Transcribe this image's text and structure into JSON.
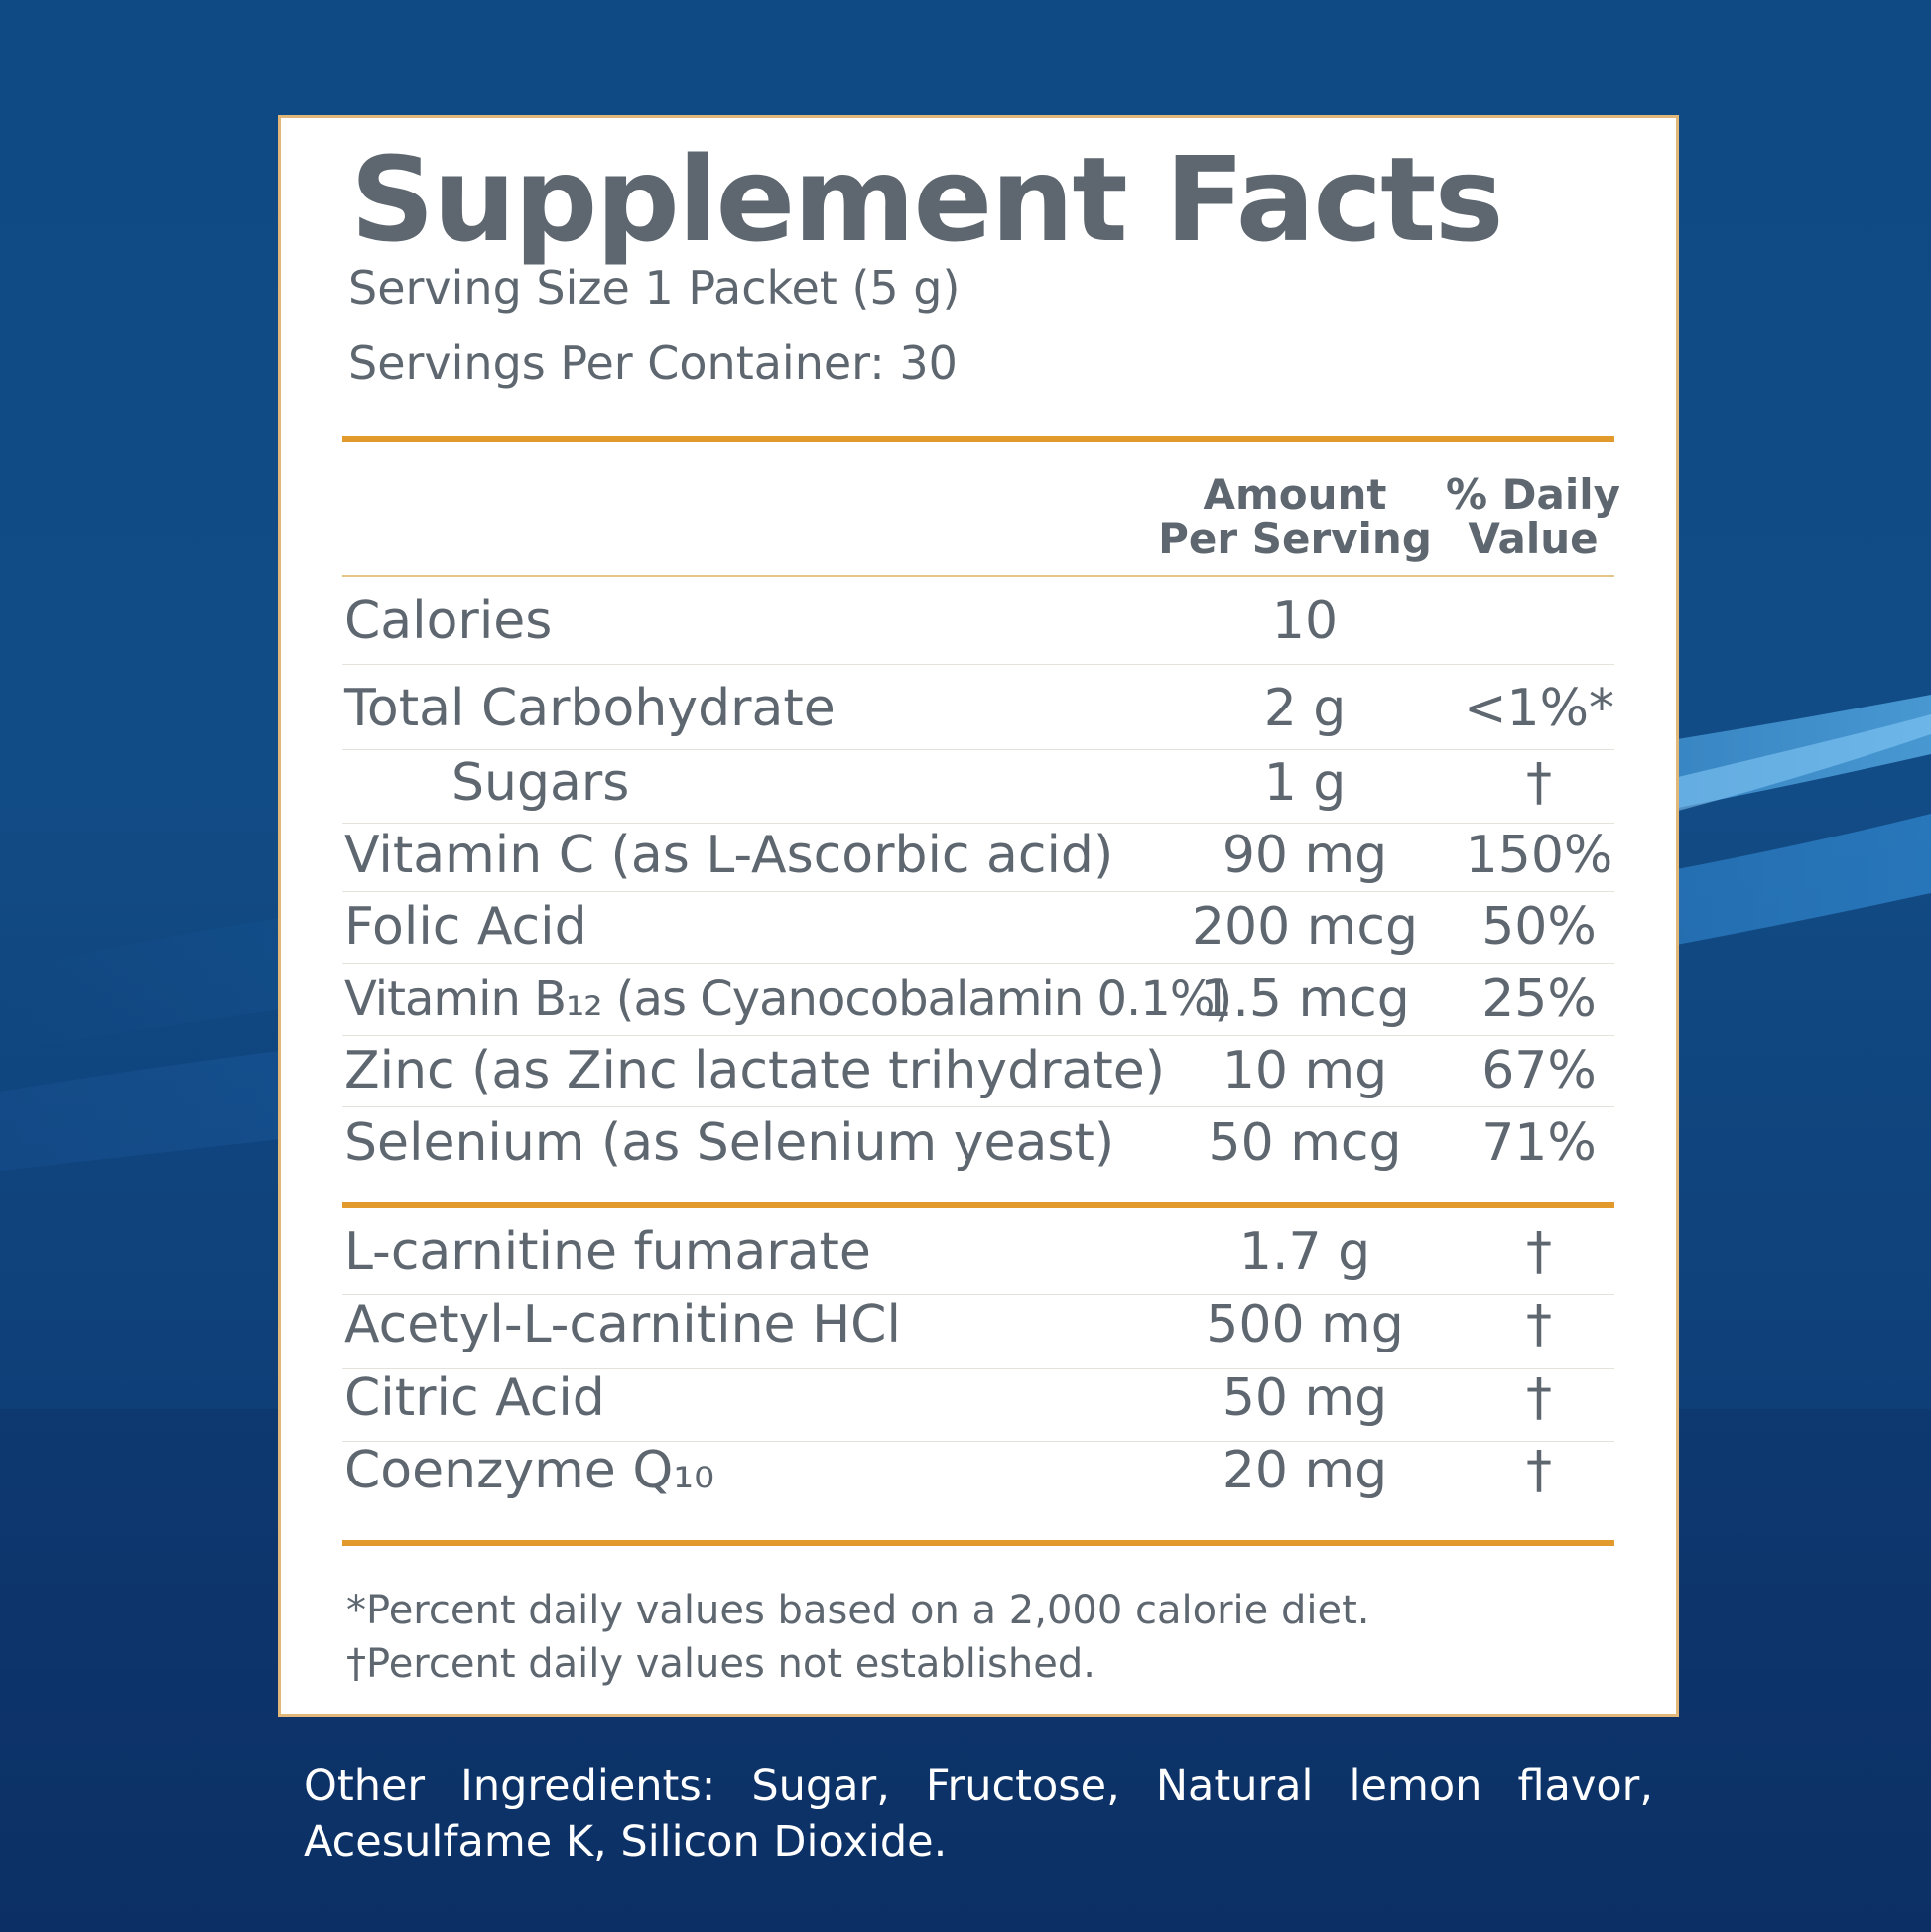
{
  "colors": {
    "background": "#0f4a84",
    "panel": "#ffffff",
    "text": "#5e6770",
    "accent_rule": "#e19a2b",
    "panel_border": "#e1b77a"
  },
  "label": {
    "title": "Supplement Facts",
    "serving_size": "Serving Size 1 Packet (5 g)",
    "servings_per_container": "Servings Per Container: 30",
    "header_amount_line1": "Amount",
    "header_amount_line2": "Per Serving",
    "header_dv_line1": "% Daily",
    "header_dv_line2": "Value",
    "nutrients": [
      {
        "name": "Calories",
        "amount": "10",
        "dv": ""
      },
      {
        "name": "Total Carbohydrate",
        "amount": "2 g",
        "dv": "<1%*"
      },
      {
        "name": "Sugars",
        "amount": "1 g",
        "dv": "†"
      },
      {
        "name": "Vitamin C (as L-Ascorbic acid)",
        "amount": "90 mg",
        "dv": "150%"
      },
      {
        "name": "Folic Acid",
        "amount": "200 mcg",
        "dv": "50%"
      },
      {
        "name": "Vitamin B₁₂ (as Cyanocobalamin 0.1%)",
        "amount": "1.5 mcg",
        "dv": "25%"
      },
      {
        "name": "Zinc (as Zinc lactate trihydrate)",
        "amount": "10 mg",
        "dv": "67%"
      },
      {
        "name": "Selenium (as Selenium yeast)",
        "amount": "50 mcg",
        "dv": "71%"
      }
    ],
    "other_actives": [
      {
        "name": "L-carnitine fumarate",
        "amount": "1.7 g",
        "dv": "†"
      },
      {
        "name": "Acetyl-L-carnitine HCl",
        "amount": "500 mg",
        "dv": "†"
      },
      {
        "name": "Citric Acid",
        "amount": "50 mg",
        "dv": "†"
      },
      {
        "name": "Coenzyme Q₁₀",
        "amount": "20 mg",
        "dv": "†"
      }
    ],
    "footnote_1": "*Percent daily values based on a 2,000 calorie diet.",
    "footnote_2": "†Percent daily values not established."
  },
  "other_ingredients": "Other Ingredients: Sugar, Fructose, Natural lemon flavor, Acesulfame K, Silicon Dioxide."
}
